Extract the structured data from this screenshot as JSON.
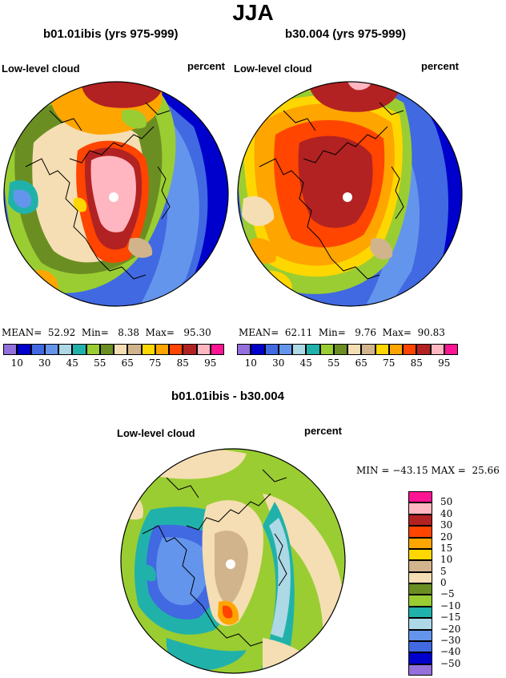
{
  "title": "JJA",
  "panels": [
    {
      "title": "b01.01ibis (yrs 975-999)",
      "left_label": "Low-level cloud",
      "right_label": "percent",
      "stats": {
        "mean_label": "MEAN=",
        "mean": "52.92",
        "min_label": "Min=",
        "min": "8.38",
        "max_label": "Max=",
        "max": "95.30"
      }
    },
    {
      "title": "b30.004 (yrs 975-999)",
      "left_label": "Low-level cloud",
      "right_label": "percent",
      "stats": {
        "mean_label": "MEAN=",
        "mean": "62.11",
        "min_label": "Min=",
        "min": "9.76",
        "max_label": "Max=",
        "max": "90.83"
      }
    }
  ],
  "abs_colorbar": {
    "colors": [
      "#9370db",
      "#0000cd",
      "#4169e1",
      "#6495ed",
      "#add8e6",
      "#20b2aa",
      "#9acd32",
      "#6b8e23",
      "#f5deb3",
      "#d2b48c",
      "#ffd700",
      "#ffa500",
      "#ff4500",
      "#b22222",
      "#ffb6c1",
      "#ff1493"
    ],
    "tick_labels": [
      "10",
      "30",
      "45",
      "55",
      "65",
      "75",
      "85",
      "95"
    ]
  },
  "diff_panel": {
    "title": "b01.01ibis - b30.004",
    "left_label": "Low-level cloud",
    "right_label": "percent",
    "minmax": {
      "min_label": "MIN =",
      "min": "−43.15",
      "max_label": "MAX =",
      "max": "25.66"
    }
  },
  "diff_colorbar": {
    "colors_top_to_bottom": [
      "#ff1493",
      "#ffb6c1",
      "#b22222",
      "#ff4500",
      "#ffa500",
      "#ffd700",
      "#d2b48c",
      "#f5deb3",
      "#6b8e23",
      "#9acd32",
      "#20b2aa",
      "#add8e6",
      "#6495ed",
      "#4169e1",
      "#0000cd",
      "#9370db"
    ],
    "tick_labels_top_to_bottom": [
      "50",
      "40",
      "30",
      "20",
      "15",
      "10",
      "5",
      "0",
      "−5",
      "−10",
      "−15",
      "−20",
      "−30",
      "−40",
      "−50"
    ]
  }
}
